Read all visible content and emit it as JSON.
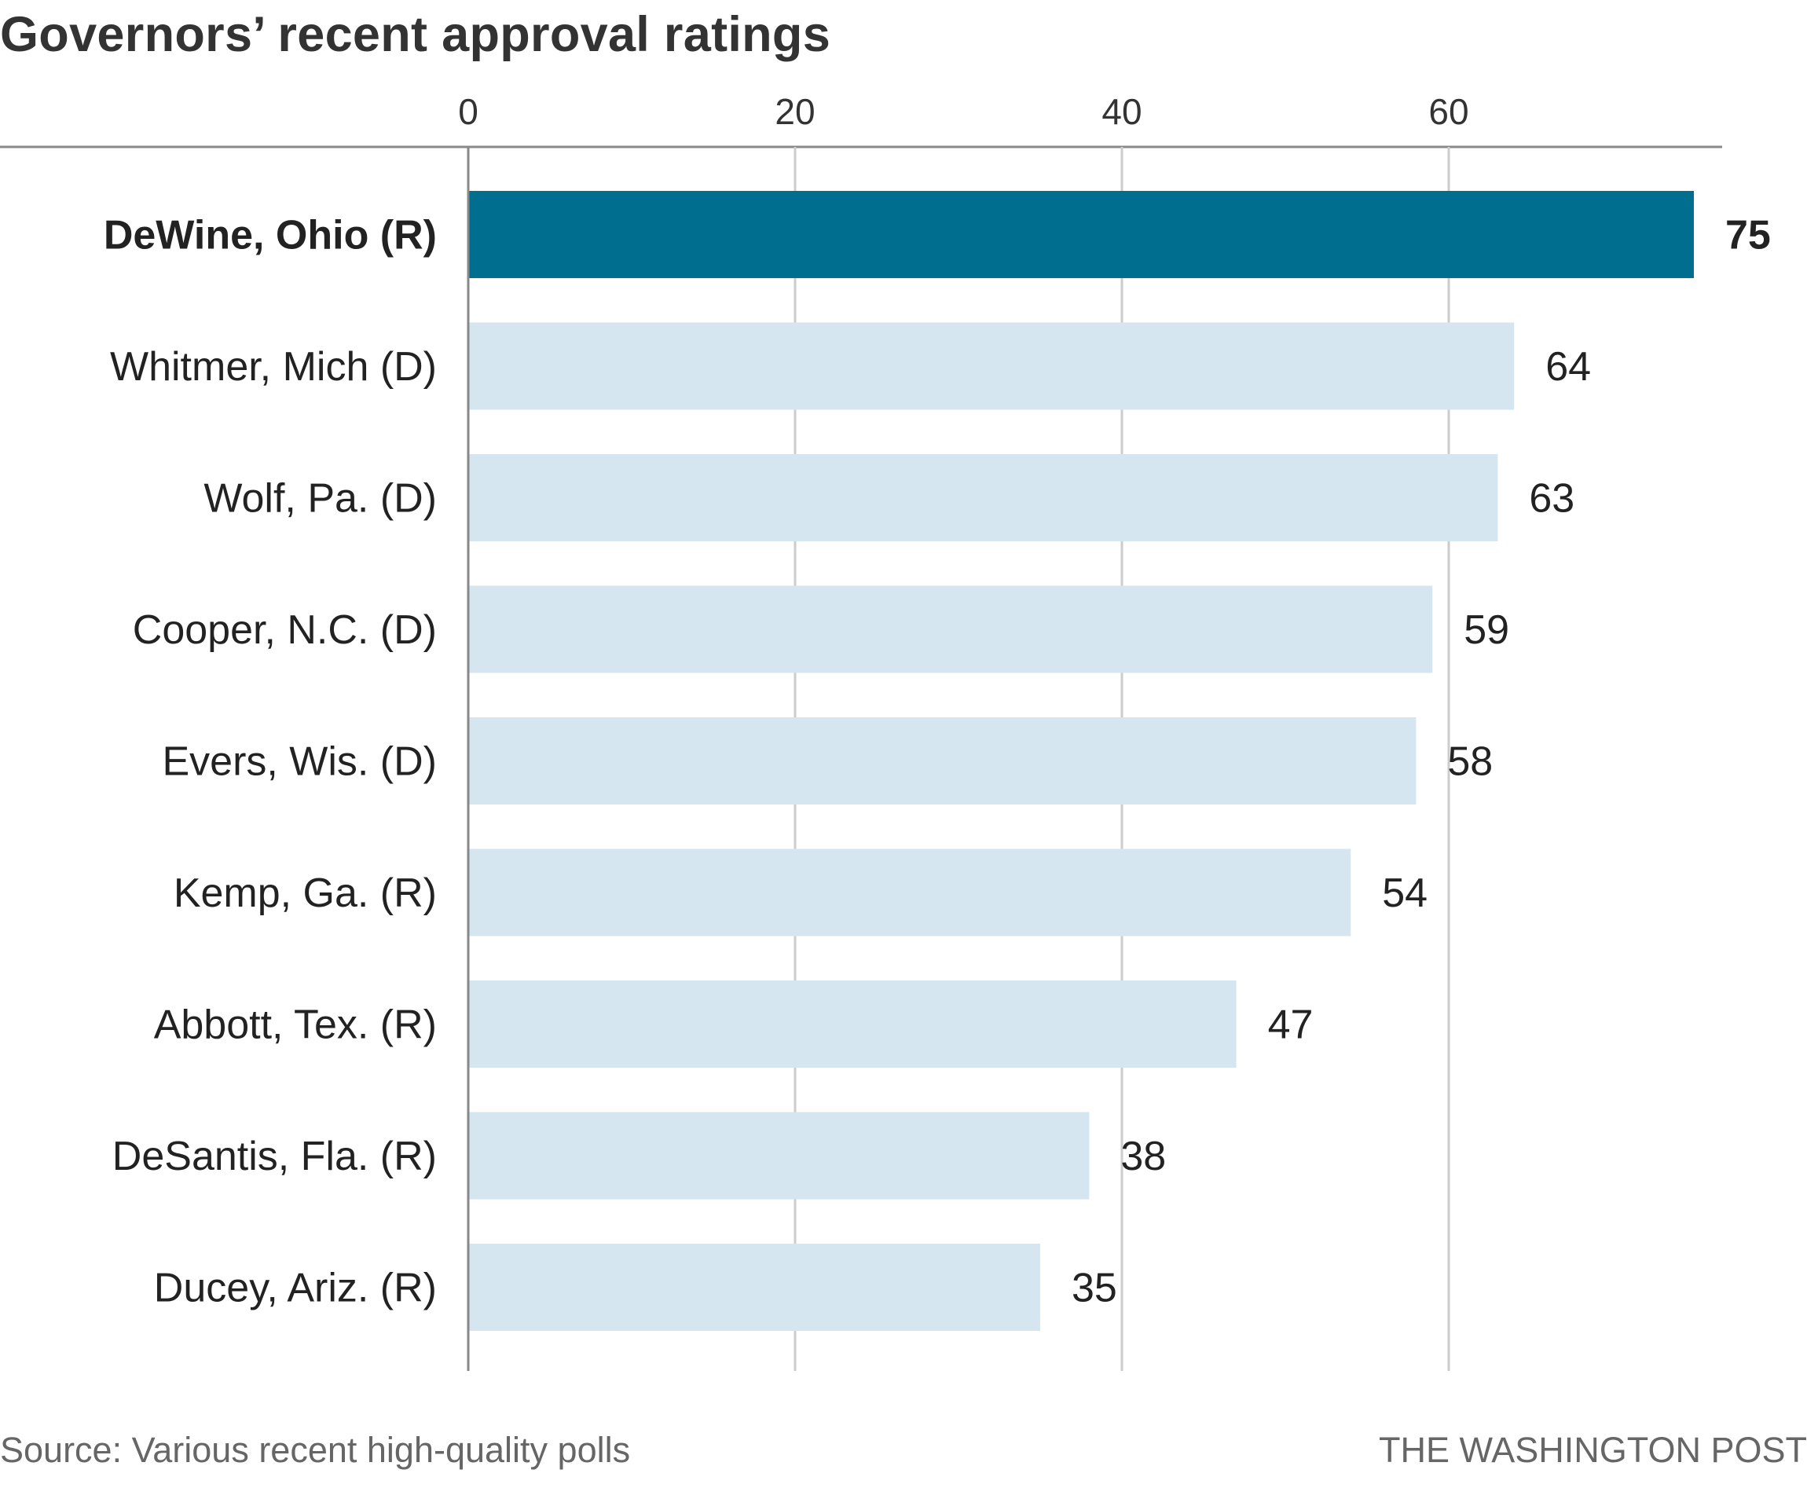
{
  "chart_data": {
    "type": "bar",
    "orientation": "horizontal",
    "title": "Governors’ recent approval ratings",
    "categories": [
      "DeWine, Ohio (R)",
      "Whitmer, Mich (D)",
      "Wolf, Pa. (D)",
      "Cooper, N.C. (D)",
      "Evers, Wis. (D)",
      "Kemp, Ga. (R)",
      "Abbott, Tex. (R)",
      "DeSantis, Fla. (R)",
      "Ducey, Ariz. (R)"
    ],
    "values": [
      75,
      64,
      63,
      59,
      58,
      54,
      47,
      38,
      35
    ],
    "highlight_index": 0,
    "xticks": [
      0,
      20,
      40,
      60
    ],
    "xlim": [
      0,
      77
    ],
    "grid": true,
    "tick_position": "top",
    "colors": {
      "highlight": "#006e8f",
      "default": "#d5e6f0",
      "grid": "#cccccc",
      "axis": "#888888"
    }
  },
  "source": "Source: Various recent high-quality polls",
  "credit": "THE WASHINGTON POST"
}
